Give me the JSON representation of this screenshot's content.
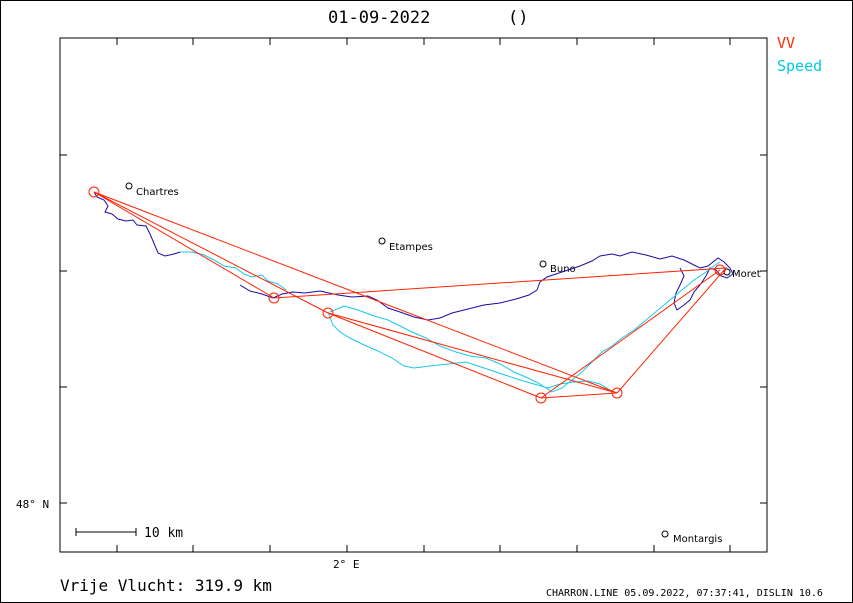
{
  "header": {
    "date": "01-09-2022",
    "paren": "()"
  },
  "legend": [
    {
      "label": "VV",
      "color": "#ff2a00"
    },
    {
      "label": "Speed",
      "color": "#00c8e6"
    }
  ],
  "axis": {
    "lat_label": "48° N",
    "lon_label": "2° E"
  },
  "scale_bar": {
    "label": "10 km"
  },
  "places": [
    {
      "name": "Chartres"
    },
    {
      "name": "Etampes"
    },
    {
      "name": "Buno"
    },
    {
      "name": "Moret"
    },
    {
      "name": "Montargis"
    }
  ],
  "footer": {
    "distance": "Vrije Vlucht:  319.9 km",
    "credit": "CHARRON.LINE 05.09.2022, 07:37:41, DISLIN 10.6"
  },
  "colors": {
    "track_dark": "#1a0ca8",
    "track_light": "#18c8e8",
    "task": "#ff2200"
  }
}
